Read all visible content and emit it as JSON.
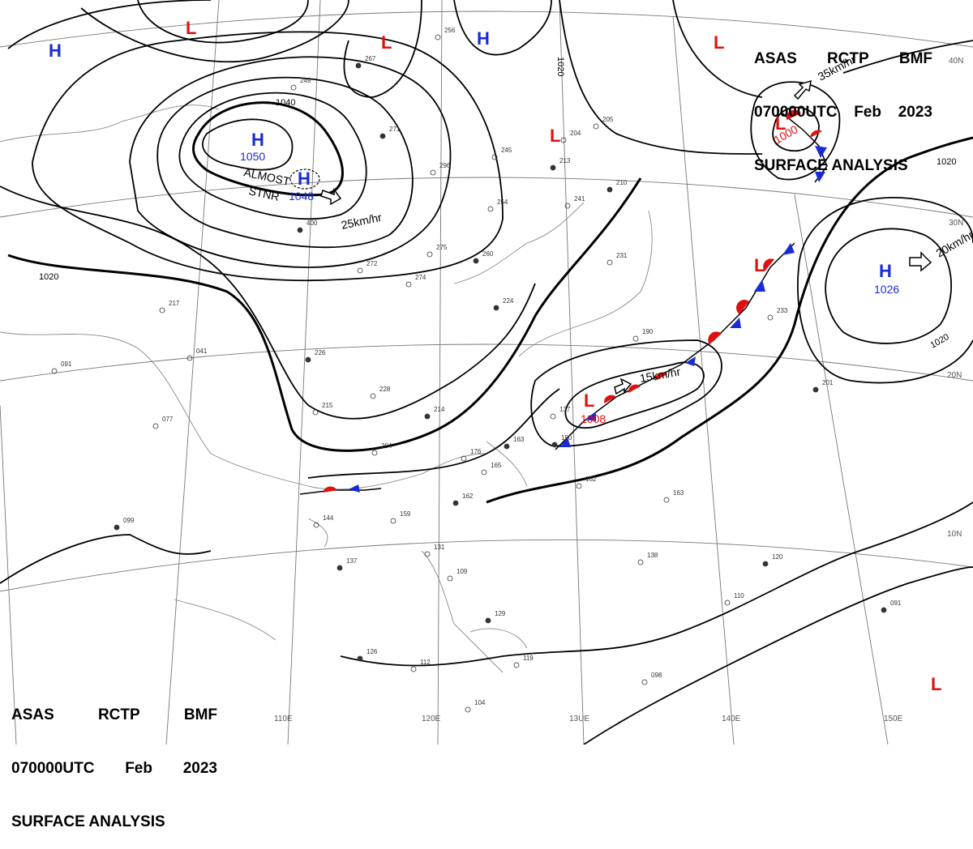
{
  "header": {
    "line1": [
      "ASAS",
      "RCTP",
      "BMF"
    ],
    "line2": [
      "070000UTC",
      "Feb",
      "2023"
    ],
    "line3": "SURFACE ANALYSIS"
  },
  "pressure_centers": [
    {
      "type": "H",
      "value": "1050"
    },
    {
      "type": "H",
      "value": "1048"
    },
    {
      "type": "H",
      "value": ""
    },
    {
      "type": "H",
      "value": ""
    },
    {
      "type": "H",
      "value": "1026"
    },
    {
      "type": "L",
      "value": "1000"
    },
    {
      "type": "L",
      "value": "1008"
    },
    {
      "type": "L",
      "value": ""
    },
    {
      "type": "L",
      "value": ""
    },
    {
      "type": "L",
      "value": ""
    },
    {
      "type": "L",
      "value": ""
    },
    {
      "type": "L",
      "value": ""
    },
    {
      "type": "L",
      "value": ""
    }
  ],
  "isobar_labels": [
    "1040",
    "1020",
    "1020",
    "1020",
    "1020"
  ],
  "movements": [
    "25km/hr",
    "35km/hr",
    "20km/hr",
    "15km/hr"
  ],
  "annotations": {
    "almost": "ALMOST",
    "stnr": "STNR"
  },
  "latitude_labels": [
    "40N",
    "30N",
    "20N",
    "10N"
  ],
  "longitude_labels": [
    "110E",
    "120E",
    "13UE",
    "140E",
    "150E"
  ],
  "station_values": [
    "267",
    "256",
    "249",
    "271",
    "296",
    "245",
    "213",
    "204",
    "205",
    "210",
    "254",
    "241",
    "400",
    "272",
    "275",
    "260",
    "274",
    "231",
    "224",
    "217",
    "041",
    "226",
    "228",
    "215",
    "214",
    "204",
    "137",
    "163",
    "176",
    "165",
    "162",
    "159",
    "144",
    "137",
    "131",
    "109",
    "129",
    "119",
    "112",
    "126",
    "104",
    "098",
    "099",
    "091",
    "077",
    "120",
    "138",
    "110",
    "091",
    "190",
    "233",
    "201",
    "163",
    "162",
    "150"
  ],
  "colors": {
    "high": "#1a2bd6",
    "low": "#e01010",
    "isobar": "#000000",
    "grid": "#666666",
    "coast": "#777777"
  }
}
